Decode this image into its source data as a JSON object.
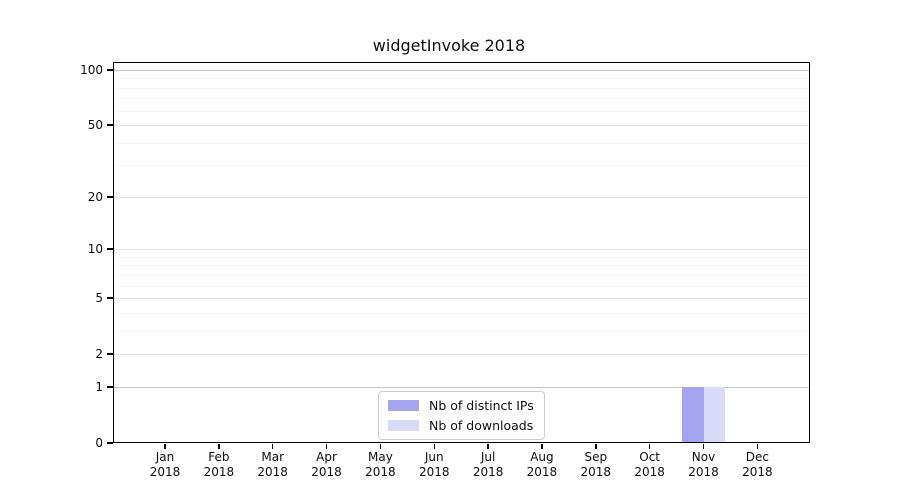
{
  "figure": {
    "title": "widgetInvoke 2018"
  },
  "chart_data": {
    "type": "bar",
    "title": "widgetInvoke 2018",
    "yscale": "log1p",
    "grid": true,
    "categories": [
      "Jan",
      "Feb",
      "Mar",
      "Apr",
      "May",
      "Jun",
      "Jul",
      "Aug",
      "Sep",
      "Oct",
      "Nov",
      "Dec"
    ],
    "year_label": "2018",
    "series": [
      {
        "name": "Nb of distinct IPs",
        "color": "#a4a4ef",
        "values": [
          0,
          0,
          0,
          0,
          0,
          0,
          0,
          0,
          0,
          0,
          1,
          0
        ]
      },
      {
        "name": "Nb of downloads",
        "color": "#d9d9f8",
        "values": [
          0,
          0,
          0,
          0,
          0,
          0,
          0,
          0,
          0,
          0,
          1,
          0
        ]
      }
    ],
    "yticks": [
      0,
      1,
      2,
      5,
      10,
      20,
      50,
      100
    ],
    "minor_yticks": [
      3,
      4,
      6,
      7,
      8,
      9,
      30,
      40,
      60,
      70,
      80,
      90
    ],
    "emphasized_gridlines": [
      1,
      100
    ],
    "ylim": [
      0,
      110.5
    ],
    "xlabel": "",
    "ylabel": "",
    "legend_position": "inside-bottom-center"
  },
  "colors": {
    "grid_major": "#e7e7e7",
    "grid_minor": "#f4f4f4",
    "grid_emphasis": "#c9c9c9",
    "spine": "#000000",
    "background": "#ffffff"
  }
}
